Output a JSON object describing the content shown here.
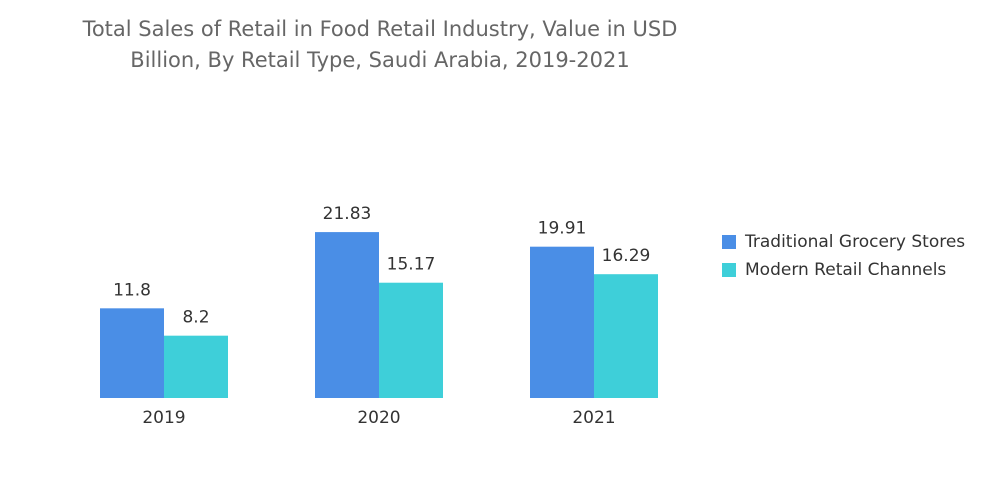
{
  "chart_data": {
    "type": "bar",
    "title": "Total Sales of Retail in Food Retail Industry, Value in USD Billion, By Retail Type, Saudi Arabia, 2019-2021",
    "categories": [
      "2019",
      "2020",
      "2021"
    ],
    "series": [
      {
        "name": "Traditional Grocery Stores",
        "color": "#4a8ee6",
        "values": [
          11.8,
          21.83,
          19.91
        ]
      },
      {
        "name": "Modern Retail Channels",
        "color": "#3ecfd9",
        "values": [
          8.2,
          15.17,
          16.29
        ]
      }
    ],
    "legend": "right"
  }
}
